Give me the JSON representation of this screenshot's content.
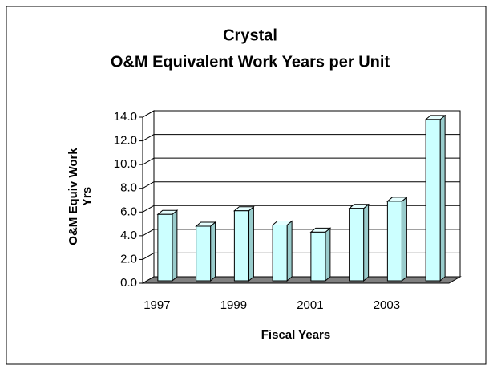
{
  "chart_data": {
    "type": "bar3d",
    "title": "Crystal",
    "subtitle": "O&M Equivalent Work Years per Unit",
    "x_label": "Fiscal Years",
    "y_label": "O&M Equiv Work Yrs",
    "categories": [
      "1997",
      null,
      "1999",
      null,
      "2001",
      null,
      "2003",
      null
    ],
    "values": [
      5.6,
      4.6,
      5.9,
      4.7,
      4.1,
      6.1,
      6.7,
      13.6
    ],
    "color": "#ccffff",
    "ylim": [
      0,
      14
    ],
    "yticks": [
      {
        "value": 0,
        "label": "0.0"
      },
      {
        "value": 2,
        "label": "2.0"
      },
      {
        "value": 4,
        "label": "4.0"
      },
      {
        "value": 6,
        "label": "6.0"
      },
      {
        "value": 8,
        "label": "8.0"
      },
      {
        "value": 10,
        "label": "10.0"
      },
      {
        "value": 12,
        "label": "12.0"
      },
      {
        "value": 14,
        "label": "14.0"
      }
    ],
    "grid": true
  }
}
